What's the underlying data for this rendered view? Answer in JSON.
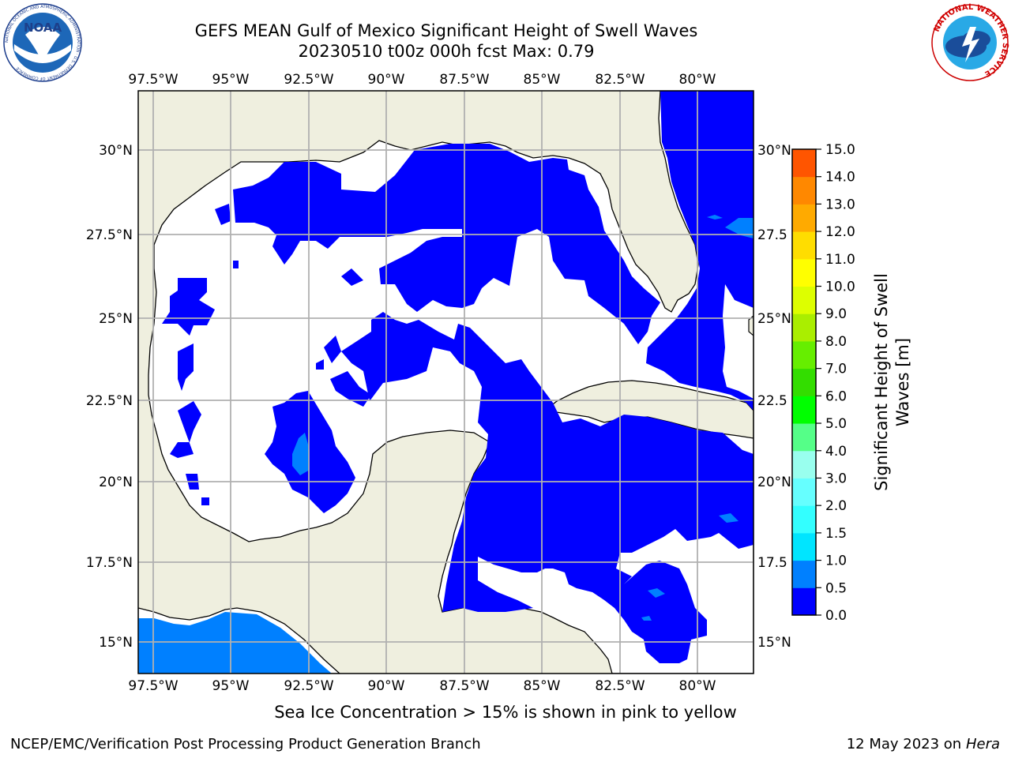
{
  "header": {
    "title_line1": "GEFS MEAN Gulf of Mexico Significant Height of Swell Waves",
    "title_line2": "20230510 t00z 000h fcst   Max: 0.79"
  },
  "logos": {
    "noaa_text": "NOAA",
    "noaa_ring_text": "NATIONAL OCEANIC AND ATMOSPHERIC ADMINISTRATION · U.S. DEPARTMENT OF COMMERCE",
    "nws_ring_text": "NATIONAL WEATHER SERVICE"
  },
  "map": {
    "lon_labels": [
      "97.5°W",
      "95°W",
      "92.5°W",
      "90°W",
      "87.5°W",
      "85°W",
      "82.5°W",
      "80°W"
    ],
    "lat_labels": [
      "30°N",
      "27.5°N",
      "25°N",
      "22.5°N",
      "20°N",
      "17.5°N",
      "15°N"
    ],
    "lat_labels_right": [
      "30°N",
      "27.5",
      "25°N",
      "22.5",
      "20°N",
      "17.5",
      "15°N"
    ],
    "colors": {
      "land": "#efefdf",
      "ocean": "#ffffff",
      "low": "#0000ff",
      "mid": "#0080ff",
      "grid": "#b0b0b0"
    }
  },
  "colorbar": {
    "label_line1": "Significant Height of Swell",
    "label_line2": "Waves [m]",
    "ticks": [
      "15.0",
      "14.0",
      "13.0",
      "12.0",
      "11.0",
      "10.0",
      "9.0",
      "8.0",
      "7.0",
      "6.0",
      "5.0",
      "4.0",
      "3.0",
      "2.0",
      "1.5",
      "1.0",
      "0.5",
      "0.0"
    ],
    "colors_bottom_to_top": [
      "#0000ff",
      "#0080ff",
      "#00e5ff",
      "#33ffff",
      "#66ffff",
      "#99ffee",
      "#55ff88",
      "#00ff00",
      "#33dd00",
      "#66ee00",
      "#aaee00",
      "#ddff00",
      "#ffff00",
      "#ffdd00",
      "#ffaa00",
      "#ff8800",
      "#ff5500",
      "#ff2200",
      "#ff0000"
    ]
  },
  "footer": {
    "caption": "Sea Ice Concentration > 15% is shown in pink to yellow",
    "credit": "NCEP/EMC/Verification Post Processing Product Generation Branch",
    "date": "12 May 2023 on",
    "host": "Hera"
  }
}
